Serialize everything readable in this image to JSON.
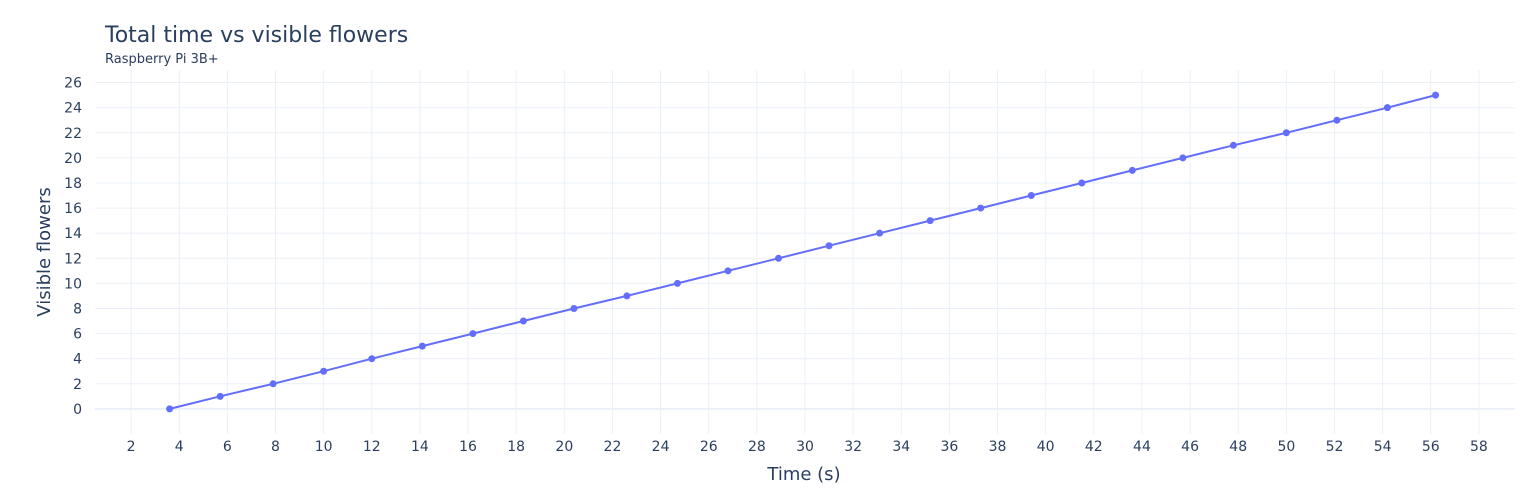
{
  "chart_data": {
    "type": "line",
    "title": "Total time vs visible flowers",
    "subtitle": "Raspberry Pi 3B+",
    "xlabel": "Time (s)",
    "ylabel": "Visible flowers",
    "xlim": [
      0.5,
      59.5
    ],
    "ylim": [
      -2,
      27
    ],
    "xticks": [
      2,
      4,
      6,
      8,
      10,
      12,
      14,
      16,
      18,
      20,
      22,
      24,
      26,
      28,
      30,
      32,
      34,
      36,
      38,
      40,
      42,
      44,
      46,
      48,
      50,
      52,
      54,
      56,
      58
    ],
    "yticks": [
      0,
      2,
      4,
      6,
      8,
      10,
      12,
      14,
      16,
      18,
      20,
      22,
      24,
      26
    ],
    "grid": true,
    "legend": "none",
    "series": [
      {
        "color": "#636efa",
        "x": [
          3.6,
          5.7,
          7.9,
          10.0,
          12.0,
          14.1,
          16.2,
          18.3,
          20.4,
          22.6,
          24.7,
          26.8,
          28.9,
          31.0,
          33.1,
          35.2,
          37.3,
          39.4,
          41.5,
          43.6,
          45.7,
          47.8,
          50.0,
          52.1,
          54.2,
          56.2
        ],
        "y": [
          0,
          1,
          2,
          3,
          4,
          5,
          6,
          7,
          8,
          9,
          10,
          11,
          12,
          13,
          14,
          15,
          16,
          17,
          18,
          19,
          20,
          21,
          22,
          23,
          24,
          25
        ]
      }
    ]
  }
}
